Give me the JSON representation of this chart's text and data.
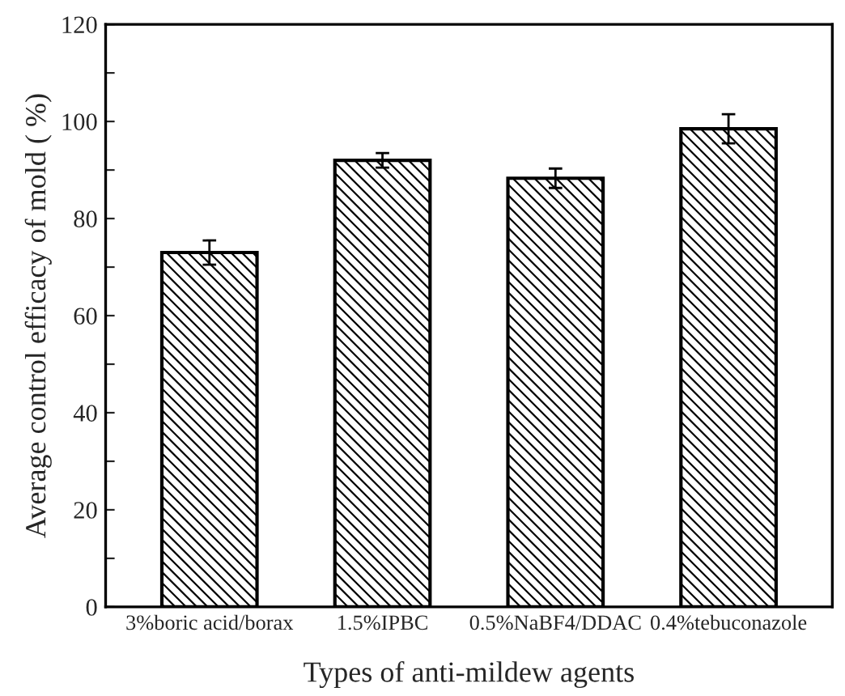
{
  "chart_data": {
    "type": "bar",
    "xlabel": "Types of anti-mildew agents",
    "ylabel": "Average control efficacy of mold ( %)",
    "categories": [
      "3%boric acid/borax",
      "1.5%IPBC",
      "0.5%NaBF4/DDAC",
      "0.4%tebuconazole"
    ],
    "values": [
      73,
      92,
      88.3,
      98.5
    ],
    "errors": [
      2.5,
      1.5,
      2,
      3
    ],
    "color": "#000000",
    "ylim": [
      0,
      120
    ],
    "yticks": [
      0,
      {
        "value": 10,
        "label": null
      },
      20,
      {
        "value": 30,
        "label": null
      },
      40,
      {
        "value": 50,
        "label": null
      },
      60,
      {
        "value": 70,
        "label": null
      },
      80,
      {
        "value": 90,
        "label": null
      },
      100,
      {
        "value": 110,
        "label": null
      },
      120
    ],
    "grid": false,
    "legend": false
  }
}
